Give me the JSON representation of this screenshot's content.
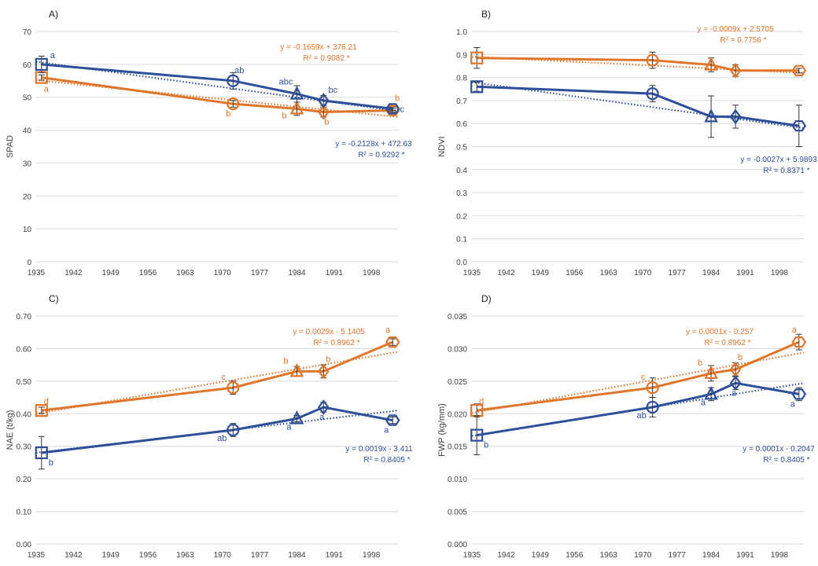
{
  "colors": {
    "orange": "#E0762B",
    "blue": "#2E4F9A",
    "grid": "#D9D9D9",
    "axis_text": "#404040"
  },
  "chart_data": [
    {
      "panel": "A)",
      "type": "line",
      "ylabel": "SPAD",
      "x_ticks": [
        "1935",
        "1942",
        "1949",
        "1956",
        "1963",
        "1970",
        "1977",
        "1984",
        "1991",
        "1998"
      ],
      "xlim": [
        1935,
        2003
      ],
      "ylim": [
        0,
        70
      ],
      "y_ticks": [
        "0",
        "10",
        "20",
        "30",
        "40",
        "50",
        "60",
        "70"
      ],
      "grid": true,
      "series": [
        {
          "color_key": "orange",
          "x": [
            1936,
            1972,
            1984,
            1989,
            2002
          ],
          "y": [
            56.0,
            48.0,
            46.5,
            45.5,
            46.0
          ],
          "err": [
            0.8,
            1.0,
            2.0,
            1.5,
            0.5
          ],
          "markers": [
            "square",
            "circle",
            "triangle",
            "diamond",
            "hexagon"
          ],
          "letters": [
            "a",
            "b",
            "b",
            "b",
            "b"
          ],
          "trend": {
            "x": [
              1935,
              2003
            ],
            "y": [
              55.2,
              44.0
            ]
          },
          "equation": "y = -0.1659x + 376.21",
          "r2": "R² = 0.9082 *"
        },
        {
          "color_key": "blue",
          "x": [
            1936,
            1972,
            1984,
            1989,
            2002
          ],
          "y": [
            60.0,
            55.0,
            51.0,
            49.0,
            46.5
          ],
          "err": [
            2.5,
            2.5,
            2.5,
            1.5,
            0.5
          ],
          "markers": [
            "square",
            "circle",
            "triangle",
            "diamond",
            "hexagon"
          ],
          "letters": [
            "a",
            "ab",
            "abc",
            "bc",
            "c"
          ],
          "trend": {
            "x": [
              1935,
              2003
            ],
            "y": [
              60.8,
              45.8
            ]
          },
          "equation": "y = -0.2128x + 472.63",
          "r2": "R² = 0.9292 *"
        }
      ]
    },
    {
      "panel": "B)",
      "type": "line",
      "ylabel": "NDVI",
      "x_ticks": [
        "1935",
        "1942",
        "1949",
        "1956",
        "1963",
        "1970",
        "1977",
        "1984",
        "1991",
        "1998"
      ],
      "xlim": [
        1935,
        2003
      ],
      "ylim": [
        0,
        1.0
      ],
      "y_ticks": [
        "0.0",
        "0.1",
        "0.2",
        "0.3",
        "0.4",
        "0.5",
        "0.6",
        "0.7",
        "0.8",
        "0.9",
        "1.0"
      ],
      "grid": true,
      "series": [
        {
          "color_key": "orange",
          "x": [
            1936,
            1972,
            1984,
            1989,
            2002
          ],
          "y": [
            0.885,
            0.875,
            0.855,
            0.83,
            0.83
          ],
          "err": [
            0.045,
            0.035,
            0.03,
            0.025,
            0.01
          ],
          "markers": [
            "square",
            "circle",
            "triangle",
            "diamond",
            "hexagon"
          ],
          "letters": [],
          "trend": {
            "x": [
              1935,
              2003
            ],
            "y": [
              0.89,
              0.82
            ]
          },
          "equation": "y = -0.0009x + 2.5705",
          "r2": "R² = 0.7756 *"
        },
        {
          "color_key": "blue",
          "x": [
            1936,
            1972,
            1984,
            1989,
            2002
          ],
          "y": [
            0.76,
            0.73,
            0.63,
            0.63,
            0.59
          ],
          "err": [
            0.02,
            0.035,
            0.09,
            0.05,
            0.09
          ],
          "markers": [
            "square",
            "circle",
            "triangle",
            "diamond",
            "hexagon"
          ],
          "letters": [],
          "trend": {
            "x": [
              1935,
              2003
            ],
            "y": [
              0.78,
              0.58
            ]
          },
          "equation": "y = -0.0027x + 5.9893",
          "r2": "R² = 0.8371 *"
        }
      ]
    },
    {
      "panel": "C)",
      "type": "line",
      "ylabel": "NAE (t/kg)",
      "x_ticks": [
        "1935",
        "1942",
        "1949",
        "1956",
        "1963",
        "1970",
        "1977",
        "1984",
        "1991",
        "1998"
      ],
      "xlim": [
        1935,
        2003
      ],
      "ylim": [
        0,
        0.7
      ],
      "y_ticks": [
        "0.00",
        "0.10",
        "0.20",
        "0.30",
        "0.40",
        "0.50",
        "0.60",
        "0.70"
      ],
      "grid": true,
      "series": [
        {
          "color_key": "orange",
          "x": [
            1936,
            1972,
            1984,
            1989,
            2002
          ],
          "y": [
            0.41,
            0.48,
            0.53,
            0.53,
            0.62
          ],
          "err": [
            0.01,
            0.02,
            0.015,
            0.02,
            0.01
          ],
          "markers": [
            "square",
            "circle",
            "triangle",
            "diamond",
            "hexagon"
          ],
          "letters": [
            "d",
            "c",
            "b",
            "b",
            "a"
          ],
          "trend": {
            "x": [
              1935,
              2003
            ],
            "y": [
              0.4,
              0.59
            ]
          },
          "equation": "y = 0.0029x - 5.1405",
          "r2": "R² = 0.8962 *"
        },
        {
          "color_key": "blue",
          "x": [
            1936,
            1972,
            1984,
            1989,
            2002
          ],
          "y": [
            0.28,
            0.35,
            0.385,
            0.42,
            0.38
          ],
          "err": [
            0.05,
            0.02,
            0.01,
            0.015,
            0.01
          ],
          "markers": [
            "square",
            "circle",
            "triangle",
            "diamond",
            "hexagon"
          ],
          "letters": [
            "b",
            "ab",
            "a",
            "a",
            "a"
          ],
          "trend": {
            "x": [
              1935,
              2003
            ],
            "y": [
              0.28,
              0.41
            ]
          },
          "equation": "y = 0.0019x - 3.411",
          "r2": "R² = 0.8405 *"
        }
      ]
    },
    {
      "panel": "D)",
      "type": "line",
      "ylabel": "FWP (kg/mm)",
      "x_ticks": [
        "1935",
        "1942",
        "1949",
        "1956",
        "1963",
        "1970",
        "1977",
        "1984",
        "1991",
        "1998"
      ],
      "xlim": [
        1935,
        2003
      ],
      "ylim": [
        0,
        0.035
      ],
      "y_ticks": [
        "0.000",
        "0.005",
        "0.010",
        "0.015",
        "0.020",
        "0.025",
        "0.030",
        "0.035"
      ],
      "grid": true,
      "series": [
        {
          "color_key": "orange",
          "x": [
            1936,
            1972,
            1984,
            1989,
            2002
          ],
          "y": [
            0.0205,
            0.024,
            0.0262,
            0.0268,
            0.031
          ],
          "err": [
            0.001,
            0.0015,
            0.0012,
            0.001,
            0.0012
          ],
          "markers": [
            "square",
            "circle",
            "triangle",
            "diamond",
            "hexagon"
          ],
          "letters": [
            "d",
            "c",
            "b",
            "b",
            "a"
          ],
          "trend": {
            "x": [
              1935,
              2003
            ],
            "y": [
              0.0201,
              0.0294
            ]
          },
          "equation": "y = 0.0001x - 0.257",
          "r2": "R² = 0.8962 *"
        },
        {
          "color_key": "blue",
          "x": [
            1936,
            1972,
            1984,
            1989,
            2002
          ],
          "y": [
            0.0167,
            0.021,
            0.023,
            0.0247,
            0.023
          ],
          "err": [
            0.003,
            0.0015,
            0.001,
            0.001,
            0.001
          ],
          "markers": [
            "square",
            "circle",
            "triangle",
            "diamond",
            "hexagon"
          ],
          "letters": [
            "b",
            "ab",
            "a",
            "a",
            "a"
          ],
          "trend": {
            "x": [
              1935,
              2003
            ],
            "y": [
              0.0166,
              0.0247
            ]
          },
          "equation": "y = 0.0001x - 0.2047",
          "r2": "R² = 0.8405 *"
        }
      ]
    }
  ]
}
